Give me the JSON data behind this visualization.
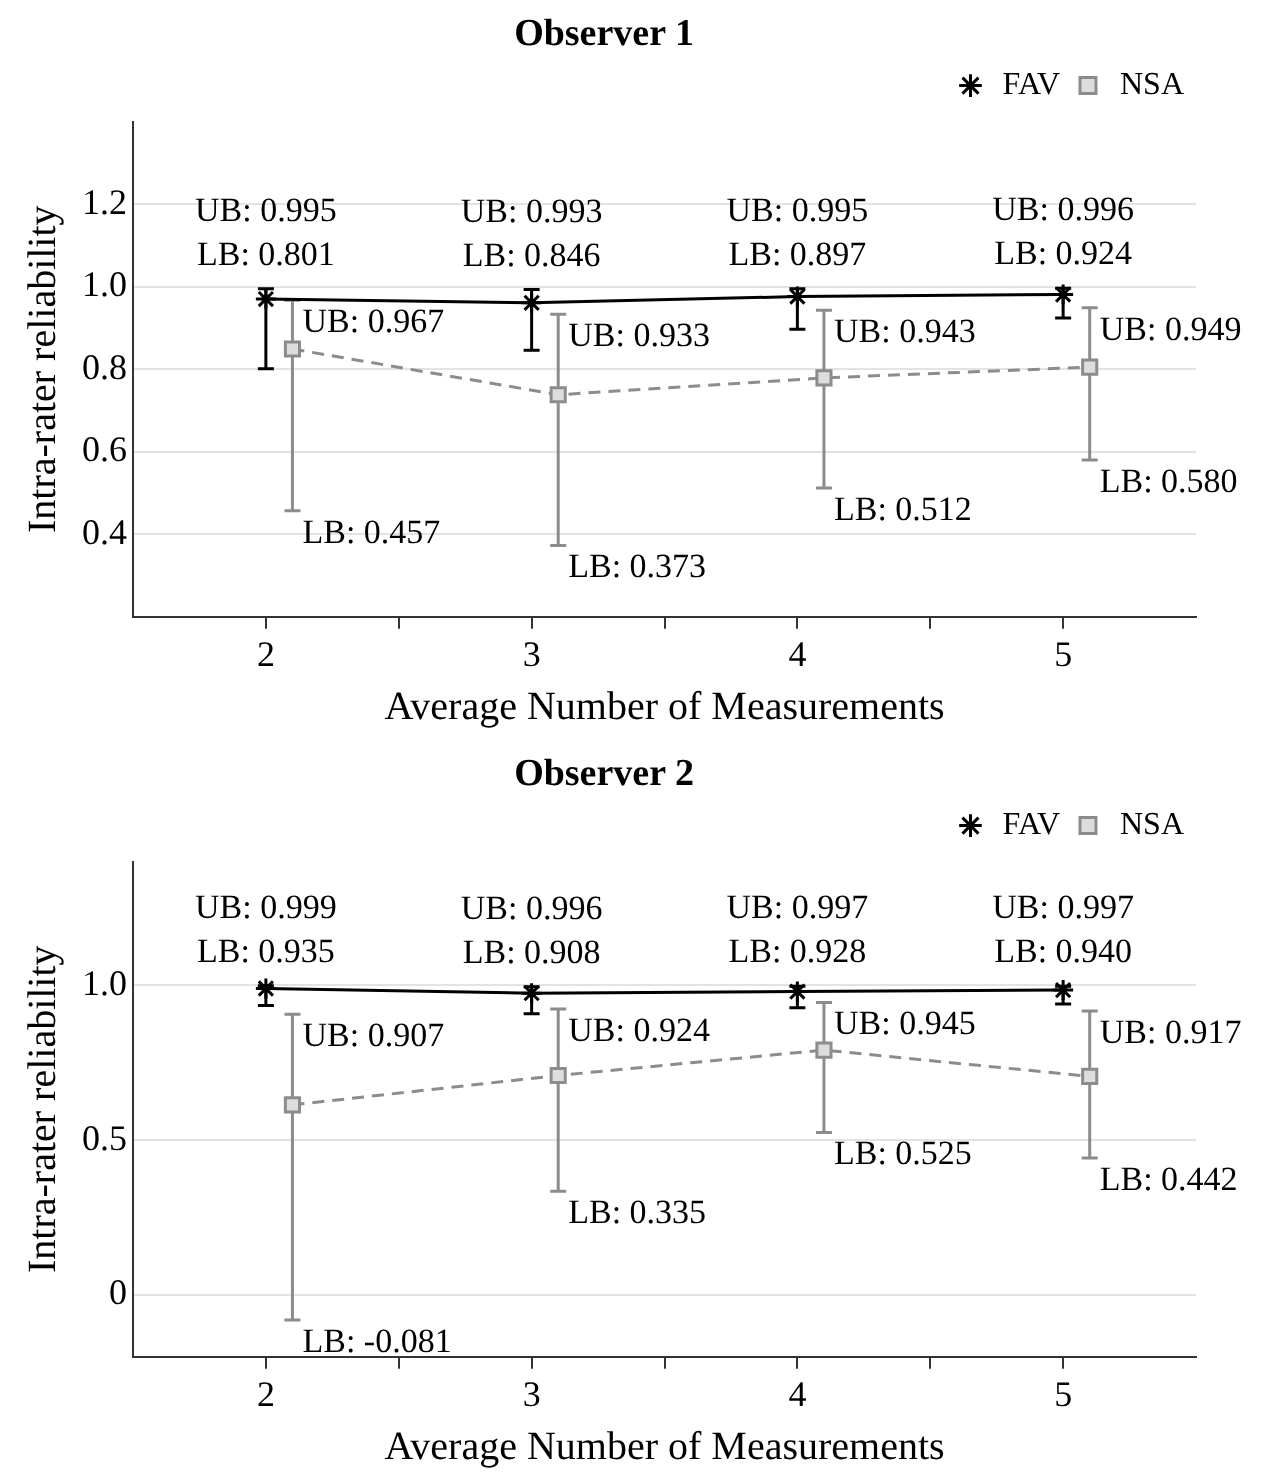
{
  "chart_data": [
    {
      "type": "line",
      "title": "Observer 1",
      "xlabel": "Average Number of Measurements",
      "ylabel": "Intra-rater reliability",
      "xlim": [
        1.5,
        5.5
      ],
      "xticks": [
        2,
        {
          "value": 2.5,
          "label": null
        },
        3,
        {
          "value": 3.5,
          "label": null
        },
        4,
        {
          "value": 4.5,
          "label": null
        },
        5
      ],
      "ylim": [
        0.2,
        1.4
      ],
      "yticks": [
        0.4,
        0.6,
        0.8,
        {
          "value": 1,
          "label": "1.0"
        },
        1.2
      ],
      "grid": "y",
      "legend": "top right",
      "series": [
        {
          "name": "FAV",
          "color": "#000000",
          "marker": "cross",
          "line_style": "solid",
          "x": [
            2,
            3,
            4,
            5
          ],
          "values": [
            0.97,
            0.961,
            0.976,
            0.981
          ],
          "errors": [
            [
              0.801,
              0.995
            ],
            [
              0.846,
              0.993
            ],
            [
              0.897,
              0.995
            ],
            [
              0.924,
              0.996
            ]
          ]
        },
        {
          "name": "NSA",
          "color": "#8c8c8c",
          "marker": "square",
          "line_style": "dashed",
          "x": [
            2.1,
            3.1,
            4.1,
            5.1
          ],
          "values": [
            0.849,
            0.738,
            0.779,
            0.805
          ],
          "errors": [
            [
              0.457,
              0.967
            ],
            [
              0.373,
              0.933
            ],
            [
              0.512,
              0.943
            ],
            [
              0.58,
              0.949
            ]
          ]
        }
      ],
      "annotations": [
        {
          "text": "UB: 0.995",
          "x": 2,
          "y": 0.995
        },
        {
          "text": "LB: 0.801",
          "x": 2,
          "y": 0.801
        },
        {
          "text": "UB: 0.993",
          "x": 3,
          "y": 0.993
        },
        {
          "text": "LB: 0.846",
          "x": 3,
          "y": 0.846
        },
        {
          "text": "UB: 0.995",
          "x": 4,
          "y": 0.995
        },
        {
          "text": "LB: 0.897",
          "x": 4,
          "y": 0.897
        },
        {
          "text": "UB: 0.996",
          "x": 5,
          "y": 0.996
        },
        {
          "text": "LB: 0.924",
          "x": 5,
          "y": 0.924
        },
        {
          "text": "UB: 0.967",
          "x": 2.1,
          "y": 0.967
        },
        {
          "text": "LB: 0.457",
          "x": 2.1,
          "y": 0.457
        },
        {
          "text": "UB: 0.933",
          "x": 3.1,
          "y": 0.933
        },
        {
          "text": "LB: 0.373",
          "x": 3.1,
          "y": 0.373
        },
        {
          "text": "UB: 0.943",
          "x": 4.1,
          "y": 0.943
        },
        {
          "text": "LB: 0.512",
          "x": 4.1,
          "y": 0.512
        },
        {
          "text": "UB: 0.949",
          "x": 5.1,
          "y": 0.949
        },
        {
          "text": "LB: 0.580",
          "x": 5.1,
          "y": 0.58
        }
      ]
    },
    {
      "type": "line",
      "title": "Observer 2",
      "xlabel": "Average Number of Measurements",
      "ylabel": "Intra-rater reliability",
      "xlim": [
        1.5,
        5.5
      ],
      "xticks": [
        2,
        {
          "value": 2.5,
          "label": null
        },
        3,
        {
          "value": 3.5,
          "label": null
        },
        4,
        {
          "value": 4.5,
          "label": null
        },
        5
      ],
      "ylim": [
        -0.2,
        1.4
      ],
      "yticks": [
        0,
        0.5,
        {
          "value": 1,
          "label": "1.0"
        }
      ],
      "grid": "y",
      "legend": "top right",
      "series": [
        {
          "name": "FAV",
          "color": "#000000",
          "marker": "cross",
          "line_style": "solid",
          "x": [
            2,
            3,
            4,
            5
          ],
          "values": [
            0.99,
            0.975,
            0.98,
            0.985
          ],
          "errors": [
            [
              0.935,
              0.999
            ],
            [
              0.908,
              0.996
            ],
            [
              0.928,
              0.997
            ],
            [
              0.94,
              0.997
            ]
          ]
        },
        {
          "name": "NSA",
          "color": "#8c8c8c",
          "marker": "square",
          "line_style": "dashed",
          "x": [
            2.1,
            3.1,
            4.1,
            5.1
          ],
          "values": [
            0.614,
            0.709,
            0.791,
            0.706
          ],
          "errors": [
            [
              -0.081,
              0.907
            ],
            [
              0.335,
              0.924
            ],
            [
              0.525,
              0.945
            ],
            [
              0.442,
              0.917
            ]
          ]
        }
      ],
      "annotations": [
        {
          "text": "UB: 0.999",
          "x": 2,
          "y": 0.999
        },
        {
          "text": "LB: 0.935",
          "x": 2,
          "y": 0.935
        },
        {
          "text": "UB: 0.996",
          "x": 3,
          "y": 0.996
        },
        {
          "text": "LB: 0.908",
          "x": 3,
          "y": 0.908
        },
        {
          "text": "UB: 0.997",
          "x": 4,
          "y": 0.997
        },
        {
          "text": "LB: 0.928",
          "x": 4,
          "y": 0.928
        },
        {
          "text": "UB: 0.997",
          "x": 5,
          "y": 0.997
        },
        {
          "text": "LB: 0.940",
          "x": 5,
          "y": 0.94
        },
        {
          "text": "UB: 0.907",
          "x": 2.1,
          "y": 0.907
        },
        {
          "text": "LB: -0.081",
          "x": 2.1,
          "y": -0.081
        },
        {
          "text": "UB: 0.924",
          "x": 3.1,
          "y": 0.924
        },
        {
          "text": "LB: 0.335",
          "x": 3.1,
          "y": 0.335
        },
        {
          "text": "UB: 0.945",
          "x": 4.1,
          "y": 0.945
        },
        {
          "text": "LB: 0.525",
          "x": 4.1,
          "y": 0.525
        },
        {
          "text": "UB: 0.917",
          "x": 5.1,
          "y": 0.917
        },
        {
          "text": "LB: 0.442",
          "x": 5.1,
          "y": 0.442
        }
      ]
    }
  ]
}
